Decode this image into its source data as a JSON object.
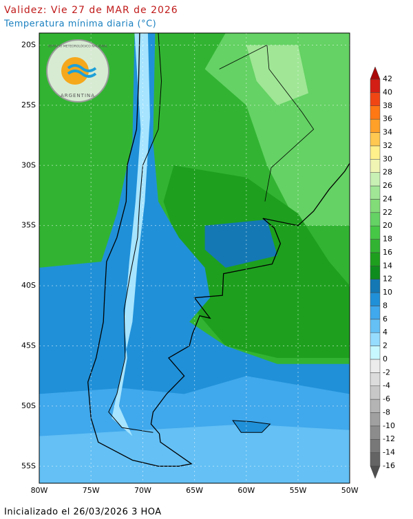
{
  "header": {
    "title": "Validez: Vie 27 de MAR de 2026",
    "subtitle": "Temperatura mínima diaria (°C)"
  },
  "map": {
    "lat_labels": [
      "20S",
      "25S",
      "30S",
      "35S",
      "40S",
      "45S",
      "50S",
      "55S"
    ],
    "lon_labels": [
      "80W",
      "75W",
      "70W",
      "65W",
      "60W",
      "55W",
      "50W"
    ],
    "logo": {
      "agency": "SERVICIO METEOROLÓGICO NACIONAL",
      "country": "ARGENTINA"
    }
  },
  "legend": {
    "labels": [
      "-16",
      "-14",
      "-12",
      "-10",
      "-8",
      "-6",
      "-4",
      "-2",
      "0",
      "2",
      "4",
      "6",
      "8",
      "10",
      "12",
      "14",
      "16",
      "18",
      "20",
      "22",
      "24",
      "26",
      "28",
      "30",
      "32",
      "34",
      "36",
      "38",
      "40",
      "42"
    ],
    "colors": [
      "#505050",
      "#646464",
      "#787878",
      "#8c8c8c",
      "#a0a0a0",
      "#b4b4b4",
      "#c8c8c8",
      "#dcdcdc",
      "#ececec",
      "#c8f8ff",
      "#96dcff",
      "#64c0f5",
      "#40a8ec",
      "#2090d8",
      "#1478b4",
      "#0f8c1e",
      "#1ea01e",
      "#32b432",
      "#46c846",
      "#64d264",
      "#82dc78",
      "#a0e696",
      "#c8f0b4",
      "#f0f5b4",
      "#fff08c",
      "#ffc850",
      "#ffa028",
      "#ff7814",
      "#f04614",
      "#d21e14",
      "#aa0a0a"
    ]
  },
  "footer": {
    "text": "Inicializado el 26/03/2026 3 HOA"
  }
}
